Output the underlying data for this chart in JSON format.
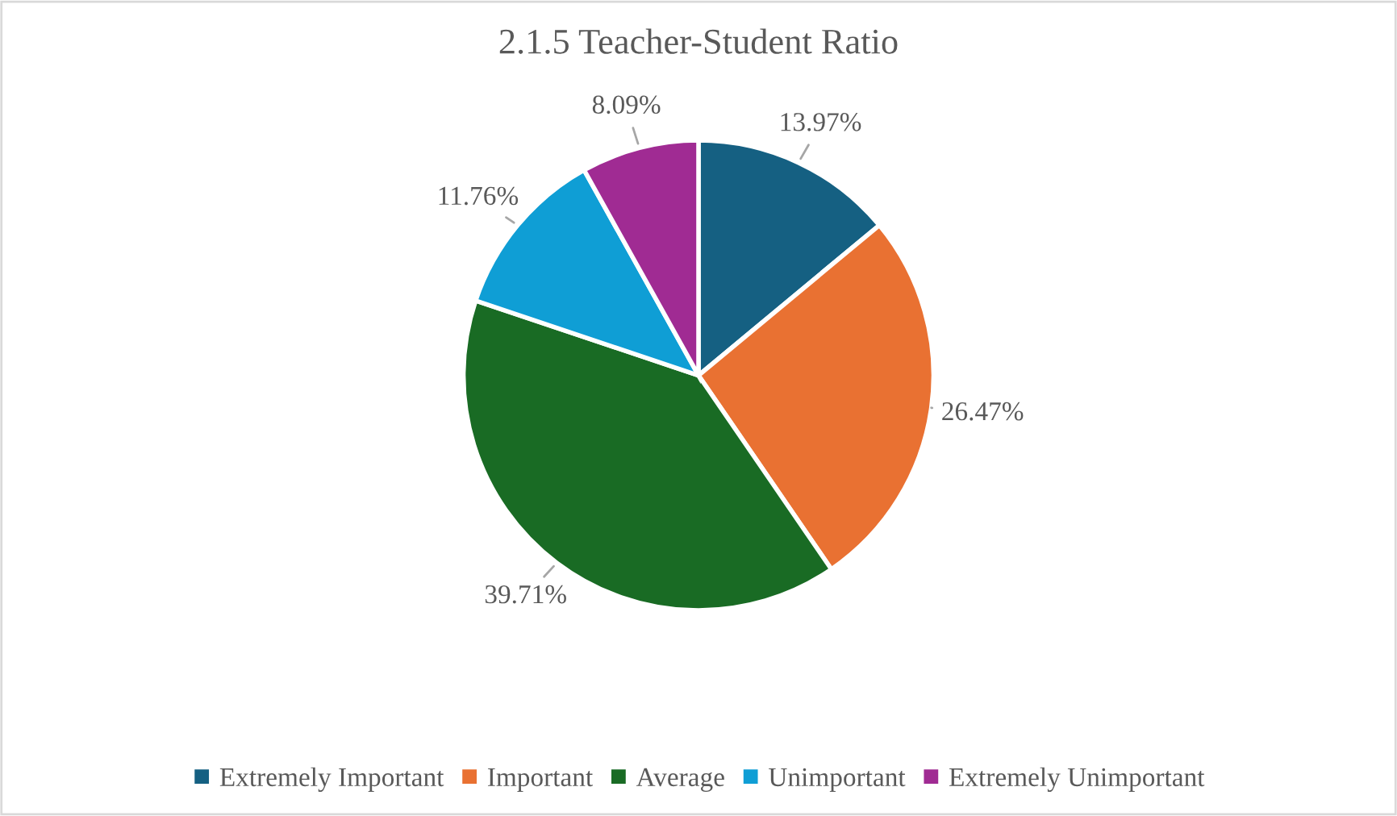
{
  "chart_data": {
    "type": "pie",
    "title": "2.1.5 Teacher-Student Ratio",
    "categories": [
      "Extremely Important",
      "Important",
      "Average",
      "Unimportant",
      "Extremely Unimportant"
    ],
    "values": [
      13.97,
      26.47,
      39.71,
      11.76,
      8.09
    ],
    "value_labels": [
      "13.97%",
      "26.47%",
      "39.71%",
      "11.76%",
      "8.09%"
    ],
    "colors": [
      "#156082",
      "#e97132",
      "#196b24",
      "#0f9ed5",
      "#a02b93"
    ],
    "legend": "bottom"
  }
}
